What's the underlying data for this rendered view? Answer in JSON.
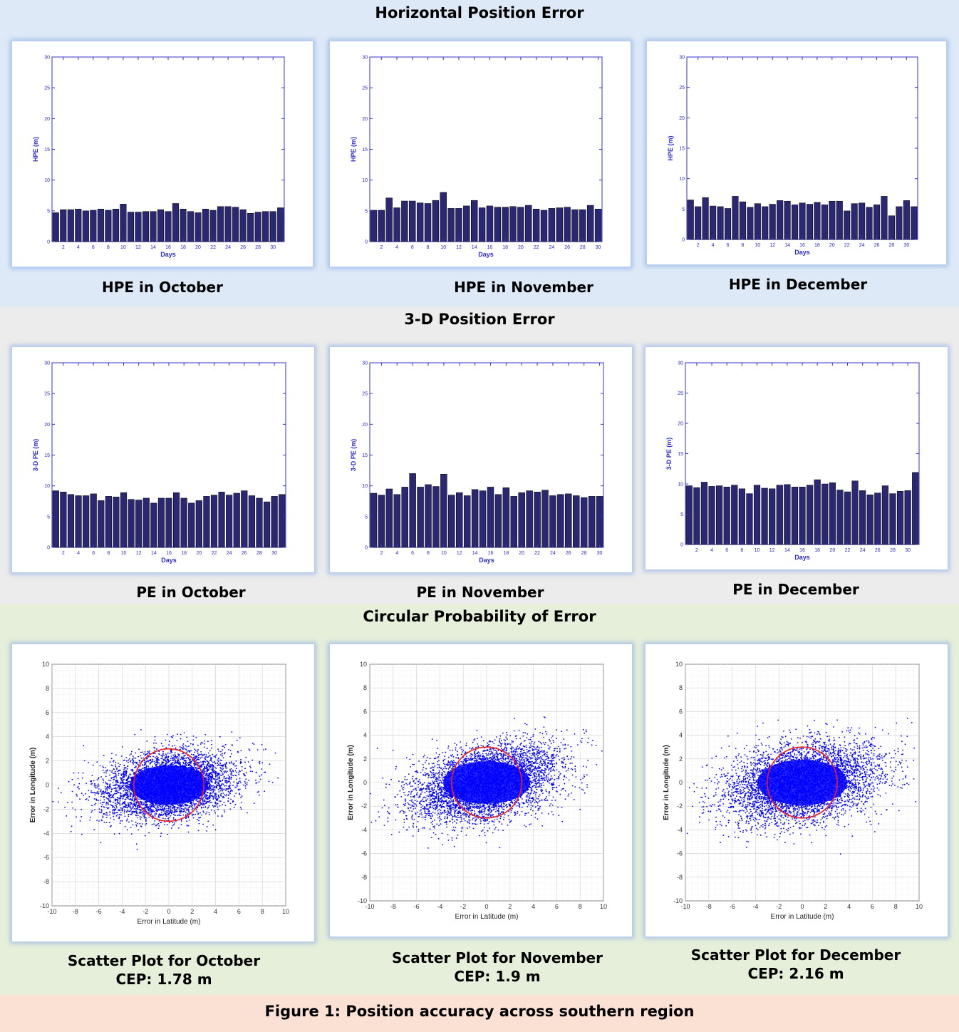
{
  "sections": {
    "hpe_title": "Horizontal Position Error",
    "pe_title": "3-D Position Error",
    "cep_title": "Circular Probability of Error",
    "figure_caption": "Figure 1: Position accuracy across southern region"
  },
  "colors": {
    "band_blue": "#dde9f6",
    "band_gray": "#ececec",
    "band_green": "#e6efda",
    "band_peach": "#fbe1d4",
    "bar_fill": "#2b2873",
    "axis_blue": "#3333cc",
    "scatter_blue": "#0000ff",
    "cep_circle": "#ee1c1c"
  },
  "captions": {
    "hpe_oct": "HPE in October",
    "hpe_nov": "HPE in November",
    "hpe_dec": "HPE in December",
    "pe_oct": "PE in October",
    "pe_nov": "PE in November",
    "pe_dec": "PE in December",
    "sc_oct": "Scatter Plot for October",
    "sc_nov": "Scatter Plot for November",
    "sc_dec": "Scatter Plot for December",
    "cep_oct": "CEP: 1.78 m",
    "cep_nov": "CEP: 1.9 m",
    "cep_dec": "CEP: 2.16 m"
  },
  "chart_data": [
    {
      "id": "hpe_oct",
      "type": "bar",
      "xlabel": "Days",
      "ylabel": "HPE (m)",
      "ylim": [
        0,
        30
      ],
      "yticks": [
        0,
        5,
        10,
        15,
        20,
        25,
        30
      ],
      "xticks": [
        2,
        4,
        6,
        8,
        10,
        12,
        14,
        16,
        18,
        20,
        22,
        24,
        26,
        28,
        30
      ],
      "x": [
        1,
        2,
        3,
        4,
        5,
        6,
        7,
        8,
        9,
        10,
        11,
        12,
        13,
        14,
        15,
        16,
        17,
        18,
        19,
        20,
        21,
        22,
        23,
        24,
        25,
        26,
        27,
        28,
        29,
        30,
        31
      ],
      "values": [
        4.7,
        5.2,
        5.2,
        5.3,
        5.0,
        5.1,
        5.3,
        5.1,
        5.3,
        6.1,
        4.8,
        4.8,
        4.9,
        4.9,
        5.2,
        4.9,
        6.2,
        5.3,
        4.9,
        4.7,
        5.3,
        5.1,
        5.7,
        5.7,
        5.6,
        5.2,
        4.6,
        4.8,
        4.9,
        4.9,
        5.5
      ]
    },
    {
      "id": "hpe_nov",
      "type": "bar",
      "xlabel": "Days",
      "ylabel": "HPE (m)",
      "ylim": [
        0,
        30
      ],
      "yticks": [
        0,
        5,
        10,
        15,
        20,
        25,
        30
      ],
      "xticks": [
        2,
        4,
        6,
        8,
        10,
        12,
        14,
        16,
        18,
        20,
        22,
        24,
        26,
        28,
        30
      ],
      "x": [
        1,
        2,
        3,
        4,
        5,
        6,
        7,
        8,
        9,
        10,
        11,
        12,
        13,
        14,
        15,
        16,
        17,
        18,
        19,
        20,
        21,
        22,
        23,
        24,
        25,
        26,
        27,
        28,
        29,
        30
      ],
      "values": [
        5.1,
        5.1,
        7.1,
        5.5,
        6.6,
        6.6,
        6.3,
        6.2,
        6.7,
        8.0,
        5.4,
        5.4,
        5.8,
        6.7,
        5.5,
        5.8,
        5.6,
        5.6,
        5.7,
        5.6,
        5.9,
        5.3,
        5.1,
        5.4,
        5.5,
        5.6,
        5.2,
        5.2,
        5.9,
        5.3
      ]
    },
    {
      "id": "hpe_dec",
      "type": "bar",
      "xlabel": "Days",
      "ylabel": "HPE (m)",
      "ylim": [
        0,
        30
      ],
      "yticks": [
        0,
        5,
        10,
        15,
        20,
        25,
        30
      ],
      "xticks": [
        2,
        4,
        6,
        8,
        10,
        12,
        14,
        16,
        18,
        20,
        22,
        24,
        26,
        28,
        30
      ],
      "x": [
        1,
        2,
        3,
        4,
        5,
        6,
        7,
        8,
        9,
        10,
        11,
        12,
        13,
        14,
        15,
        16,
        17,
        18,
        19,
        20,
        21,
        22,
        23,
        24,
        25,
        26,
        27,
        28,
        29,
        30,
        31
      ],
      "values": [
        6.5,
        5.4,
        6.9,
        5.5,
        5.4,
        5.1,
        7.1,
        6.2,
        5.3,
        5.9,
        5.4,
        5.8,
        6.4,
        6.3,
        5.7,
        6.0,
        5.8,
        6.1,
        5.7,
        6.3,
        6.3,
        4.7,
        5.9,
        6.0,
        5.3,
        5.7,
        7.1,
        3.9,
        5.4,
        6.4,
        5.4
      ]
    },
    {
      "id": "pe_oct",
      "type": "bar",
      "xlabel": "Days",
      "ylabel": "3-D PE (m)",
      "ylim": [
        0,
        30
      ],
      "yticks": [
        0,
        5,
        10,
        15,
        20,
        25,
        30
      ],
      "xticks": [
        2,
        4,
        6,
        8,
        10,
        12,
        14,
        16,
        18,
        20,
        22,
        24,
        26,
        28,
        30
      ],
      "x": [
        1,
        2,
        3,
        4,
        5,
        6,
        7,
        8,
        9,
        10,
        11,
        12,
        13,
        14,
        15,
        16,
        17,
        18,
        19,
        20,
        21,
        22,
        23,
        24,
        25,
        26,
        27,
        28,
        29,
        30,
        31
      ],
      "values": [
        9.2,
        9.0,
        8.6,
        8.4,
        8.4,
        8.7,
        7.6,
        8.3,
        8.2,
        8.9,
        7.8,
        7.7,
        8.0,
        7.2,
        8.0,
        8.0,
        8.9,
        8.0,
        7.2,
        7.6,
        8.3,
        8.5,
        9.0,
        8.5,
        8.8,
        9.2,
        8.4,
        8.0,
        7.4,
        8.3,
        8.6
      ]
    },
    {
      "id": "pe_nov",
      "type": "bar",
      "xlabel": "Days",
      "ylabel": "3-D PE (m)",
      "ylim": [
        0,
        30
      ],
      "yticks": [
        0,
        5,
        10,
        15,
        20,
        25,
        30
      ],
      "xticks": [
        2,
        4,
        6,
        8,
        10,
        12,
        14,
        16,
        18,
        20,
        22,
        24,
        26,
        28,
        30
      ],
      "x": [
        1,
        2,
        3,
        4,
        5,
        6,
        7,
        8,
        9,
        10,
        11,
        12,
        13,
        14,
        15,
        16,
        17,
        18,
        19,
        20,
        21,
        22,
        23,
        24,
        25,
        26,
        27,
        28,
        29,
        30
      ],
      "values": [
        8.8,
        8.5,
        9.5,
        8.6,
        9.8,
        12.0,
        9.8,
        10.2,
        9.9,
        11.9,
        8.5,
        8.9,
        8.4,
        9.4,
        9.2,
        9.8,
        8.6,
        9.7,
        8.3,
        8.9,
        9.2,
        9.0,
        9.3,
        8.4,
        8.6,
        8.7,
        8.4,
        8.1,
        8.3,
        8.3
      ]
    },
    {
      "id": "pe_dec",
      "type": "bar",
      "xlabel": "Days",
      "ylabel": "3-D PE (m)",
      "ylim": [
        0,
        30
      ],
      "yticks": [
        0,
        5,
        10,
        15,
        20,
        25,
        30
      ],
      "xticks": [
        2,
        4,
        6,
        8,
        10,
        12,
        14,
        16,
        18,
        20,
        22,
        24,
        26,
        28,
        30
      ],
      "x": [
        1,
        2,
        3,
        4,
        5,
        6,
        7,
        8,
        9,
        10,
        11,
        12,
        13,
        14,
        15,
        16,
        17,
        18,
        19,
        20,
        21,
        22,
        23,
        24,
        25,
        26,
        27,
        28,
        29,
        30,
        31
      ],
      "values": [
        9.7,
        9.4,
        10.3,
        9.6,
        9.7,
        9.5,
        9.8,
        9.2,
        8.4,
        9.8,
        9.3,
        9.2,
        9.8,
        9.9,
        9.5,
        9.5,
        9.8,
        10.7,
        10.0,
        10.2,
        9.0,
        8.7,
        10.5,
        8.9,
        8.2,
        8.5,
        9.7,
        8.4,
        8.8,
        8.9,
        11.9
      ]
    },
    {
      "id": "sc_oct",
      "type": "scatter",
      "xlabel": "Error in Latitude (m)",
      "ylabel": "Error in Longitude (m)",
      "xlim": [
        -10,
        10
      ],
      "ylim": [
        -10,
        10
      ],
      "xticks": [
        -10,
        -8,
        -6,
        -4,
        -2,
        0,
        2,
        4,
        6,
        8,
        10
      ],
      "yticks": [
        -10,
        -8,
        -6,
        -4,
        -2,
        0,
        2,
        4,
        6,
        8,
        10
      ],
      "cloud": {
        "center": [
          0,
          0
        ],
        "sigma_x": 2.8,
        "sigma_y": 1.35,
        "tilt": 0.12
      },
      "cep_circle": {
        "center": [
          0,
          0
        ],
        "radius": 3
      }
    },
    {
      "id": "sc_nov",
      "type": "scatter",
      "xlabel": "Error in Latitude (m)",
      "ylabel": "Error in Longitude (m)",
      "xlim": [
        -10,
        10
      ],
      "ylim": [
        -10,
        10
      ],
      "xticks": [
        -10,
        -8,
        -6,
        -4,
        -2,
        0,
        2,
        4,
        6,
        8,
        10
      ],
      "yticks": [
        -10,
        -8,
        -6,
        -4,
        -2,
        0,
        2,
        4,
        6,
        8,
        10
      ],
      "cloud": {
        "center": [
          0,
          0
        ],
        "sigma_x": 3.1,
        "sigma_y": 1.5,
        "tilt": 0.2
      },
      "cep_circle": {
        "center": [
          0,
          0
        ],
        "radius": 3
      }
    },
    {
      "id": "sc_dec",
      "type": "scatter",
      "xlabel": "Error in Latitude (m)",
      "ylabel": "Error in Longitude (m)",
      "xlim": [
        -10,
        10
      ],
      "ylim": [
        -10,
        10
      ],
      "xticks": [
        -10,
        -8,
        -6,
        -4,
        -2,
        0,
        2,
        4,
        6,
        8,
        10
      ],
      "yticks": [
        -10,
        -8,
        -6,
        -4,
        -2,
        0,
        2,
        4,
        6,
        8,
        10
      ],
      "cloud": {
        "center": [
          0,
          0
        ],
        "sigma_x": 3.2,
        "sigma_y": 1.6,
        "tilt": 0.15
      },
      "cep_circle": {
        "center": [
          0,
          0
        ],
        "radius": 3
      }
    }
  ]
}
